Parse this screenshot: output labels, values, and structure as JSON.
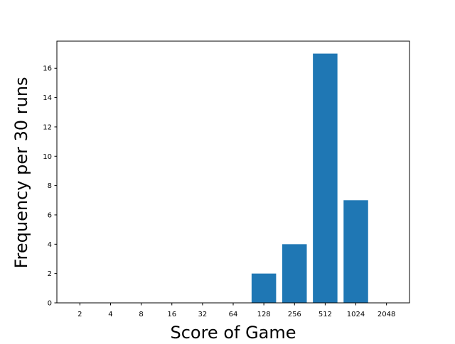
{
  "chart_data": {
    "type": "bar",
    "categories": [
      "2",
      "4",
      "8",
      "16",
      "32",
      "64",
      "128",
      "256",
      "512",
      "1024",
      "2048"
    ],
    "values": [
      0,
      0,
      0,
      0,
      0,
      0,
      2,
      4,
      17,
      7,
      0
    ],
    "xlabel": "Score of Game",
    "ylabel": "Frequency per 30 runs",
    "ylim": [
      0,
      17.85
    ],
    "yticks": [
      0,
      2,
      4,
      6,
      8,
      10,
      12,
      14,
      16
    ],
    "grid": false,
    "legend": "none",
    "bar_color": "#1f77b4"
  }
}
